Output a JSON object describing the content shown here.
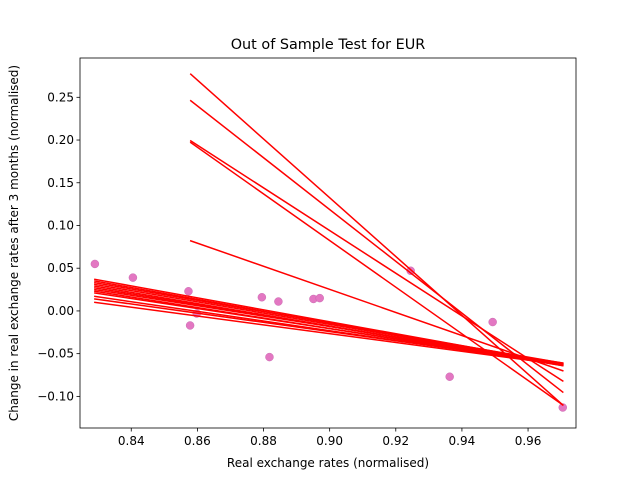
{
  "chart_data": {
    "type": "scatter",
    "title": "Out of Sample Test for EUR",
    "xlabel": "Real exchange rates (normalised)",
    "ylabel": "Change in real exchange rates after 3 months (normalised)",
    "xlim": [
      0.8245,
      0.9745
    ],
    "ylim": [
      -0.137,
      0.296
    ],
    "xticks": [
      0.84,
      0.86,
      0.88,
      0.9,
      0.92,
      0.94,
      0.96
    ],
    "xtick_labels": [
      "0.84",
      "0.86",
      "0.88",
      "0.90",
      "0.92",
      "0.94",
      "0.96"
    ],
    "yticks": [
      -0.1,
      -0.05,
      0.0,
      0.05,
      0.1,
      0.15,
      0.2,
      0.25
    ],
    "ytick_labels": [
      "−0.10",
      "−0.05",
      "0.00",
      "0.05",
      "0.10",
      "0.15",
      "0.20",
      "0.25"
    ],
    "grid": false,
    "points": {
      "color": "#e377c2",
      "x": [
        0.829,
        0.8405,
        0.8573,
        0.8578,
        0.8598,
        0.8795,
        0.8818,
        0.8845,
        0.8951,
        0.897,
        0.9245,
        0.9363,
        0.9493,
        0.9705
      ],
      "y": [
        0.055,
        0.039,
        0.023,
        -0.017,
        -0.003,
        0.016,
        -0.054,
        0.011,
        0.014,
        0.015,
        0.047,
        -0.077,
        -0.013,
        -0.113
      ]
    },
    "regression_lines": {
      "color": "#ff0000",
      "lines": [
        {
          "x": [
            0.858,
            0.9705
          ],
          "y": [
            0.277,
            -0.11
          ]
        },
        {
          "x": [
            0.858,
            0.9705
          ],
          "y": [
            0.246,
            -0.095
          ]
        },
        {
          "x": [
            0.858,
            0.9705
          ],
          "y": [
            0.199,
            -0.082
          ]
        },
        {
          "x": [
            0.858,
            0.9705
          ],
          "y": [
            0.197,
            -0.11
          ]
        },
        {
          "x": [
            0.858,
            0.9705
          ],
          "y": [
            0.082,
            -0.07
          ]
        },
        {
          "x": [
            0.829,
            0.9705
          ],
          "y": [
            0.037,
            -0.062
          ]
        },
        {
          "x": [
            0.829,
            0.9705
          ],
          "y": [
            0.035,
            -0.063
          ]
        },
        {
          "x": [
            0.829,
            0.9705
          ],
          "y": [
            0.033,
            -0.061
          ]
        },
        {
          "x": [
            0.829,
            0.9705
          ],
          "y": [
            0.031,
            -0.062
          ]
        },
        {
          "x": [
            0.829,
            0.9705
          ],
          "y": [
            0.029,
            -0.064
          ]
        },
        {
          "x": [
            0.829,
            0.9705
          ],
          "y": [
            0.027,
            -0.063
          ]
        },
        {
          "x": [
            0.829,
            0.9705
          ],
          "y": [
            0.025,
            -0.061
          ]
        },
        {
          "x": [
            0.829,
            0.9705
          ],
          "y": [
            0.023,
            -0.064
          ]
        },
        {
          "x": [
            0.829,
            0.9705
          ],
          "y": [
            0.021,
            -0.062
          ]
        },
        {
          "x": [
            0.829,
            0.9705
          ],
          "y": [
            0.017,
            -0.063
          ]
        },
        {
          "x": [
            0.829,
            0.9705
          ],
          "y": [
            0.014,
            -0.062
          ]
        },
        {
          "x": [
            0.829,
            0.9705
          ],
          "y": [
            0.01,
            -0.063
          ]
        }
      ]
    }
  }
}
